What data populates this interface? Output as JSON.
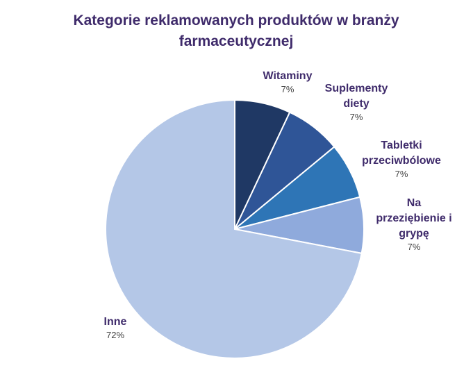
{
  "chart_data": {
    "type": "pie",
    "title_lines": [
      "Kategorie reklamowanych produktów w branży",
      "farmaceutycznej"
    ],
    "start_angle_deg": 0,
    "slices": [
      {
        "label_lines": [
          "Witaminy"
        ],
        "value": 7,
        "value_label": "7%",
        "color": "#1f3864"
      },
      {
        "label_lines": [
          "Suplementy",
          "diety"
        ],
        "value": 7,
        "value_label": "7%",
        "color": "#2f5597"
      },
      {
        "label_lines": [
          "Tabletki",
          "przeciwbólowe"
        ],
        "value": 7,
        "value_label": "7%",
        "color": "#2e75b6"
      },
      {
        "label_lines": [
          "Na",
          "przeziębienie i",
          "grypę"
        ],
        "value": 7,
        "value_label": "7%",
        "color": "#8faadc"
      },
      {
        "label_lines": [
          "Inne"
        ],
        "value": 72,
        "value_label": "72%",
        "color": "#b4c7e7"
      }
    ]
  }
}
